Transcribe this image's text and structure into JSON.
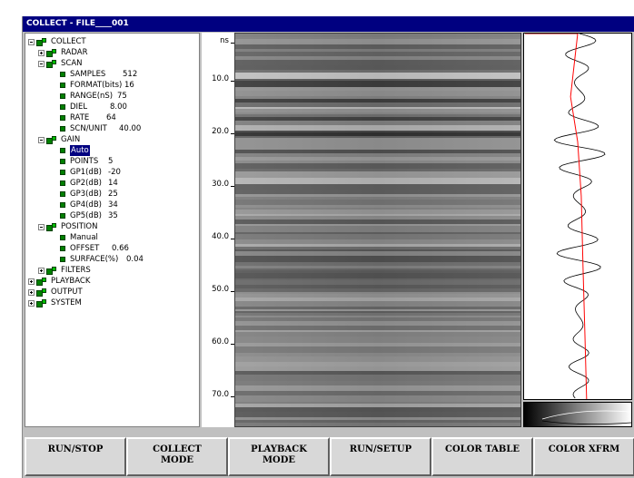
{
  "window": {
    "title": "COLLECT - FILE____001"
  },
  "tree": {
    "collect": "COLLECT",
    "radar": "RADAR",
    "scan": {
      "label": "SCAN",
      "items": [
        {
          "label": "SAMPLES",
          "value": "512"
        },
        {
          "label": "FORMAT(bits)",
          "value": "16"
        },
        {
          "label": "RANGE(nS)",
          "value": "75"
        },
        {
          "label": "DIEL",
          "value": "8.00"
        },
        {
          "label": "RATE",
          "value": "64"
        },
        {
          "label": "SCN/UNIT",
          "value": "40.00"
        }
      ]
    },
    "gain": {
      "label": "GAIN",
      "mode": "Auto",
      "items": [
        {
          "label": "POINTS",
          "value": "5"
        },
        {
          "label": "GP1(dB)",
          "value": "-20"
        },
        {
          "label": "GP2(dB)",
          "value": "14"
        },
        {
          "label": "GP3(dB)",
          "value": "25"
        },
        {
          "label": "GP4(dB)",
          "value": "34"
        },
        {
          "label": "GP5(dB)",
          "value": "35"
        }
      ]
    },
    "position": {
      "label": "POSITION",
      "mode": "Manual",
      "items": [
        {
          "label": "OFFSET",
          "value": "0.66"
        },
        {
          "label": "SURFACE(%)",
          "value": "0.04"
        }
      ]
    },
    "filters": "FILTERS",
    "playback": "PLAYBACK",
    "output": "OUTPUT",
    "system": "SYSTEM"
  },
  "axis": {
    "unit": "ns",
    "ticks": [
      "10.0",
      "20.0",
      "30.0",
      "40.0",
      "50.0",
      "60.0",
      "70.0"
    ]
  },
  "function_keys": [
    "RUN/STOP",
    "COLLECT\nMODE",
    "PLAYBACK\nMODE",
    "RUN/SETUP",
    "COLOR TABLE",
    "COLOR XFRM"
  ],
  "colors": {
    "title_bar": "#000080",
    "tree_icon": "#008000",
    "gain_curve": "#ff0000"
  }
}
